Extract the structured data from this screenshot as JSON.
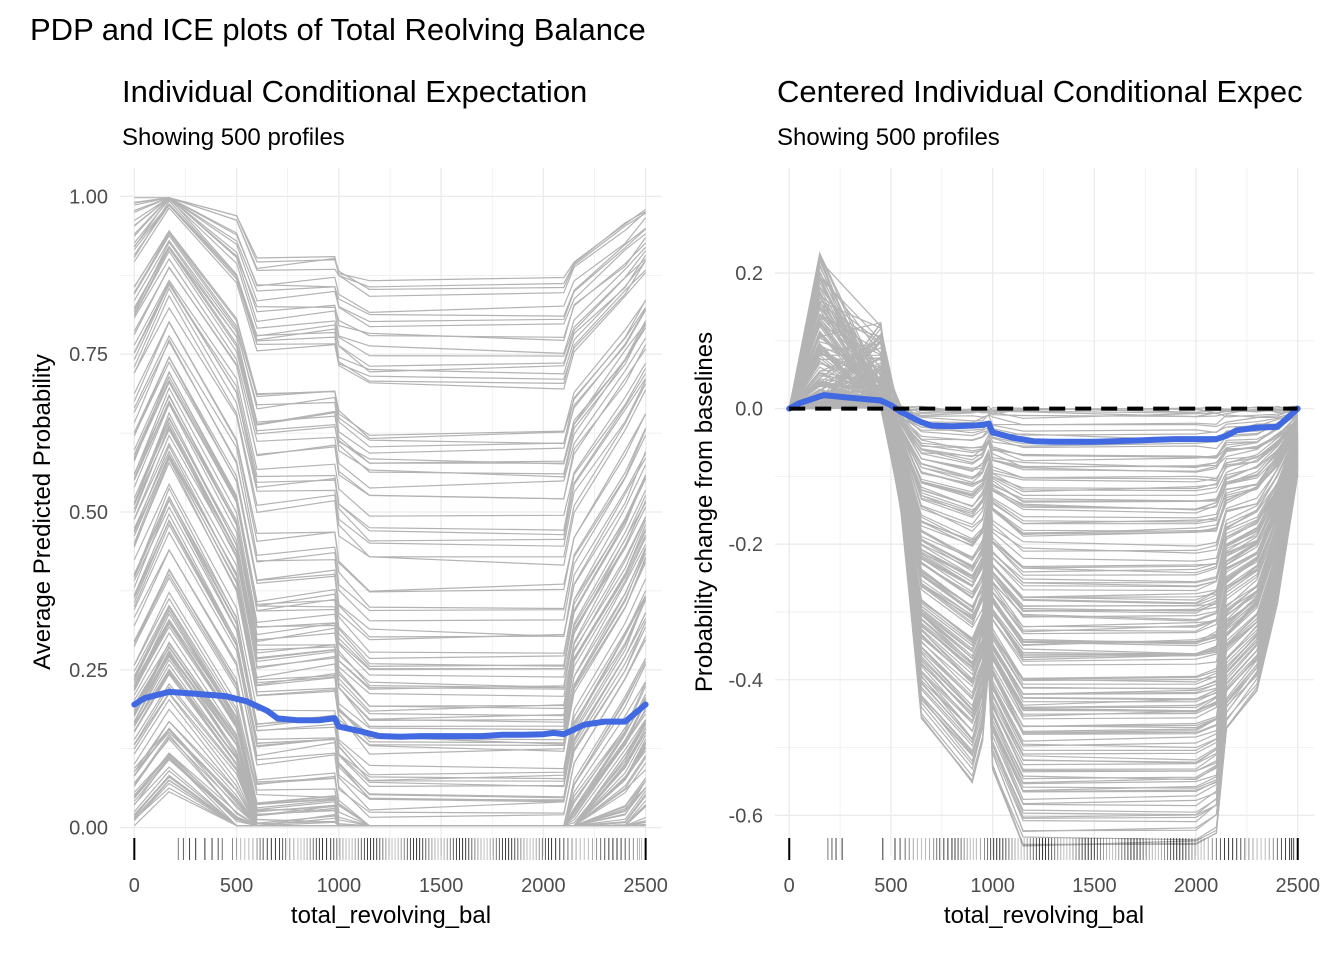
{
  "title": "PDP and ICE plots of Total Reolving Balance",
  "colors": {
    "ice_line": "#b3b3b3",
    "pdp_line": "#4169e1",
    "baseline": "#000000",
    "grid": "#ebebeb",
    "rug": "#000000"
  },
  "chart_data": [
    {
      "type": "line",
      "title": "Individual Conditional Expectation",
      "subtitle": "Showing 500 profiles",
      "xlabel": "total_revolving_bal",
      "ylabel": "Average Predicted Probability",
      "xlim": [
        -70,
        2580
      ],
      "ylim": [
        -0.045,
        1.045
      ],
      "x_ticks": [
        0,
        500,
        1000,
        1500,
        2000,
        2500
      ],
      "x_tick_labels": [
        "0",
        "500",
        "1000",
        "1500",
        "2000",
        "2500"
      ],
      "y_ticks": [
        0,
        0.25,
        0.5,
        0.75,
        1.0
      ],
      "y_tick_labels": [
        "0.00",
        "0.25",
        "0.50",
        "0.75",
        "1.00"
      ],
      "grid": true,
      "legend": "none",
      "ice_profiles": 500,
      "ice_base_x": [
        0,
        170,
        500,
        600,
        980,
        1000,
        1150,
        2100,
        2150,
        2400,
        2500
      ],
      "ice_base_y": [
        0.55,
        0.68,
        0.48,
        0.31,
        0.32,
        0.27,
        0.22,
        0.22,
        0.31,
        0.45,
        0.52
      ],
      "series": [
        {
          "name": "PDP",
          "x": [
            0,
            50,
            170,
            300,
            450,
            550,
            650,
            700,
            800,
            900,
            950,
            980,
            1000,
            1100,
            1200,
            1300,
            1400,
            1500,
            1600,
            1700,
            1800,
            1900,
            2000,
            2050,
            2100,
            2200,
            2300,
            2400,
            2500
          ],
          "y": [
            0.195,
            0.205,
            0.215,
            0.212,
            0.208,
            0.2,
            0.185,
            0.173,
            0.17,
            0.17,
            0.172,
            0.173,
            0.16,
            0.153,
            0.145,
            0.144,
            0.145,
            0.145,
            0.145,
            0.145,
            0.147,
            0.147,
            0.148,
            0.15,
            0.148,
            0.163,
            0.168,
            0.168,
            0.195
          ]
        }
      ],
      "rug_x": [
        215,
        240,
        270,
        300,
        345,
        380,
        410,
        430,
        480,
        500,
        520,
        540,
        560,
        580,
        600,
        615,
        630,
        650,
        670,
        690,
        710,
        725,
        740,
        760,
        780,
        800,
        815,
        830,
        845,
        860,
        875,
        890,
        905,
        920,
        940,
        960,
        975,
        990,
        1005,
        1020,
        1035,
        1050,
        1065,
        1080,
        1095,
        1110,
        1125,
        1140,
        1155,
        1170,
        1185,
        1200,
        1215,
        1230,
        1245,
        1260,
        1275,
        1290,
        1305,
        1320,
        1335,
        1350,
        1365,
        1380,
        1395,
        1410,
        1425,
        1440,
        1455,
        1470,
        1485,
        1500,
        1515,
        1530,
        1545,
        1560,
        1575,
        1590,
        1605,
        1620,
        1635,
        1650,
        1665,
        1680,
        1695,
        1710,
        1725,
        1740,
        1755,
        1770,
        1785,
        1800,
        1815,
        1830,
        1845,
        1860,
        1875,
        1890,
        1905,
        1920,
        1935,
        1950,
        1965,
        1980,
        1995,
        2010,
        2025,
        2040,
        2060,
        2080,
        2100,
        2120,
        2140,
        2160,
        2180,
        2200,
        2220,
        2240,
        2260,
        2280,
        2300,
        2320,
        2340,
        2360,
        2380,
        2400,
        2420,
        2440,
        2460,
        2470,
        2480
      ]
    },
    {
      "type": "line",
      "title": "Centered Individual Conditional Expec",
      "subtitle": "Showing 500 profiles",
      "xlabel": "total_revolving_bal",
      "ylabel": "Probability change from baselines",
      "xlim": [
        -70,
        2580
      ],
      "ylim": [
        -0.66,
        0.355
      ],
      "x_ticks": [
        0,
        500,
        1000,
        1500,
        2000,
        2500
      ],
      "x_tick_labels": [
        "0",
        "500",
        "1000",
        "1500",
        "2000",
        "2500"
      ],
      "y_ticks": [
        -0.6,
        -0.4,
        -0.2,
        0.0,
        0.2
      ],
      "y_tick_labels": [
        "-0.6",
        "-0.4",
        "-0.2",
        "0.0",
        "0.2"
      ],
      "grid": true,
      "legend": "none",
      "ice_profiles": 500,
      "ice_base_x": [
        0,
        150,
        450,
        550,
        650,
        900,
        950,
        980,
        1000,
        1150,
        2000,
        2100,
        2150,
        2300,
        2400,
        2500
      ],
      "ice_base_y": [
        0.0,
        0.03,
        0.01,
        -0.08,
        -0.24,
        -0.29,
        -0.26,
        -0.2,
        -0.28,
        -0.34,
        -0.34,
        -0.33,
        -0.25,
        -0.22,
        -0.15,
        -0.05
      ],
      "series": [
        {
          "name": "PDP",
          "x": [
            0,
            50,
            170,
            300,
            450,
            500,
            550,
            650,
            700,
            800,
            900,
            950,
            980,
            1000,
            1100,
            1200,
            1300,
            1400,
            1500,
            1600,
            1700,
            1800,
            1900,
            2000,
            2050,
            2100,
            2150,
            2200,
            2300,
            2400,
            2500
          ],
          "y": [
            0.0,
            0.008,
            0.02,
            0.016,
            0.012,
            0.005,
            -0.005,
            -0.02,
            -0.025,
            -0.026,
            -0.025,
            -0.024,
            -0.022,
            -0.035,
            -0.043,
            -0.048,
            -0.049,
            -0.049,
            -0.049,
            -0.048,
            -0.047,
            -0.046,
            -0.045,
            -0.045,
            -0.045,
            -0.045,
            -0.04,
            -0.032,
            -0.028,
            -0.027,
            0.0
          ]
        },
        {
          "name": "baseline",
          "x": [
            0,
            2500
          ],
          "y": [
            0.0,
            0.0
          ]
        }
      ],
      "rug_x": [
        190,
        210,
        230,
        260,
        460,
        520,
        545,
        570,
        590,
        610,
        630,
        650,
        670,
        690,
        710,
        725,
        740,
        760,
        780,
        800,
        815,
        830,
        845,
        860,
        875,
        890,
        905,
        920,
        940,
        960,
        975,
        990,
        1005,
        1020,
        1035,
        1050,
        1065,
        1080,
        1095,
        1110,
        1125,
        1140,
        1155,
        1170,
        1185,
        1200,
        1215,
        1230,
        1245,
        1260,
        1275,
        1290,
        1305,
        1320,
        1335,
        1350,
        1365,
        1380,
        1395,
        1410,
        1425,
        1440,
        1455,
        1470,
        1485,
        1500,
        1515,
        1530,
        1545,
        1560,
        1575,
        1590,
        1605,
        1620,
        1635,
        1650,
        1665,
        1680,
        1695,
        1710,
        1725,
        1740,
        1755,
        1770,
        1785,
        1800,
        1815,
        1830,
        1845,
        1860,
        1875,
        1890,
        1905,
        1920,
        1935,
        1950,
        1965,
        1980,
        1995,
        2010,
        2025,
        2040,
        2060,
        2080,
        2100,
        2120,
        2140,
        2160,
        2180,
        2200,
        2220,
        2240,
        2260,
        2280,
        2300,
        2320,
        2340,
        2360,
        2380,
        2400,
        2420,
        2440,
        2460,
        2470,
        2480
      ]
    }
  ]
}
